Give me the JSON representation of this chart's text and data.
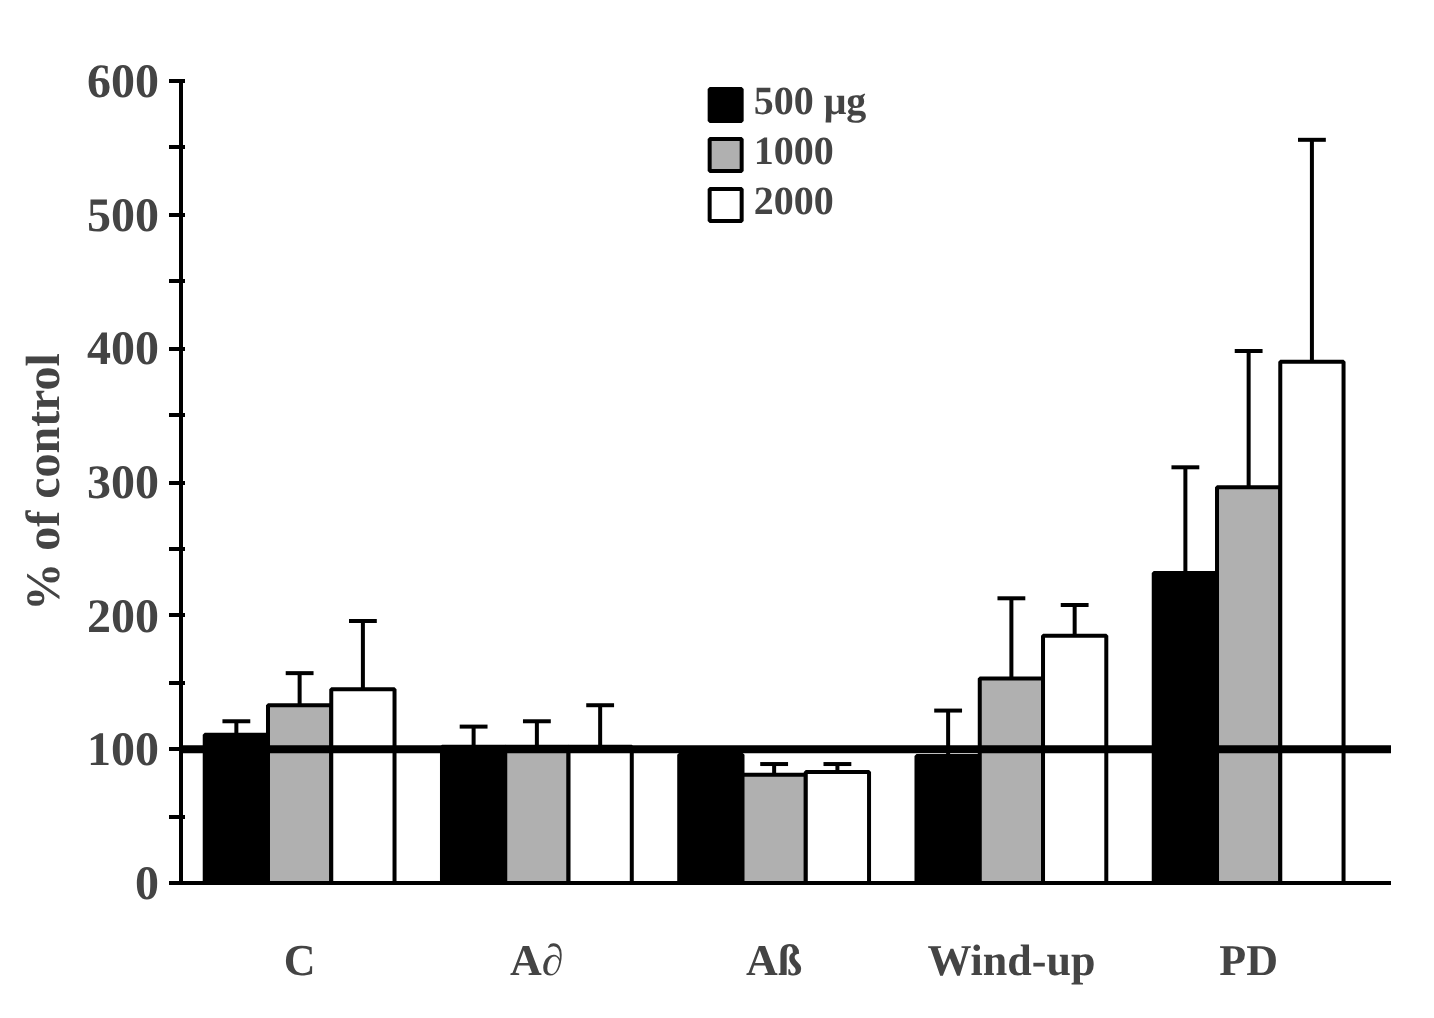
{
  "chart_data": {
    "type": "bar",
    "ylabel": "% of control",
    "categories": [
      "C",
      "A∂",
      "Aß",
      "Wind-up",
      "PD"
    ],
    "series": [
      {
        "name": "500 μg",
        "color": "#000000",
        "values": [
          111,
          102,
          96,
          95,
          232
        ],
        "errors": [
          [
            111,
            121
          ],
          [
            102,
            117
          ],
          [
            96,
            99
          ],
          [
            95,
            129
          ],
          [
            232,
            311
          ]
        ]
      },
      {
        "name": "1000",
        "color": "#b0b0b0",
        "values": [
          133,
          102,
          81,
          153,
          296
        ],
        "errors": [
          [
            133,
            157
          ],
          [
            102,
            121
          ],
          [
            81,
            89
          ],
          [
            153,
            213
          ],
          [
            296,
            398
          ]
        ]
      },
      {
        "name": "2000",
        "color": "#ffffff",
        "values": [
          145,
          102,
          83,
          185,
          390
        ],
        "errors": [
          [
            145,
            196
          ],
          [
            102,
            133
          ],
          [
            83,
            89
          ],
          [
            185,
            208
          ],
          [
            390,
            556
          ]
        ]
      }
    ],
    "ylim": [
      0,
      600
    ],
    "yticks": [
      0,
      {
        "value": 50,
        "label": null
      },
      100,
      {
        "value": 150,
        "label": null
      },
      200,
      {
        "value": 250,
        "label": null
      },
      300,
      {
        "value": 350,
        "label": null
      },
      400,
      {
        "value": 450,
        "label": null
      },
      500,
      {
        "value": 550,
        "label": null
      },
      600
    ],
    "ref_lines": [
      {
        "axis": "y",
        "value": 100,
        "color": "#000000"
      }
    ],
    "grid": false,
    "legend": "top"
  }
}
